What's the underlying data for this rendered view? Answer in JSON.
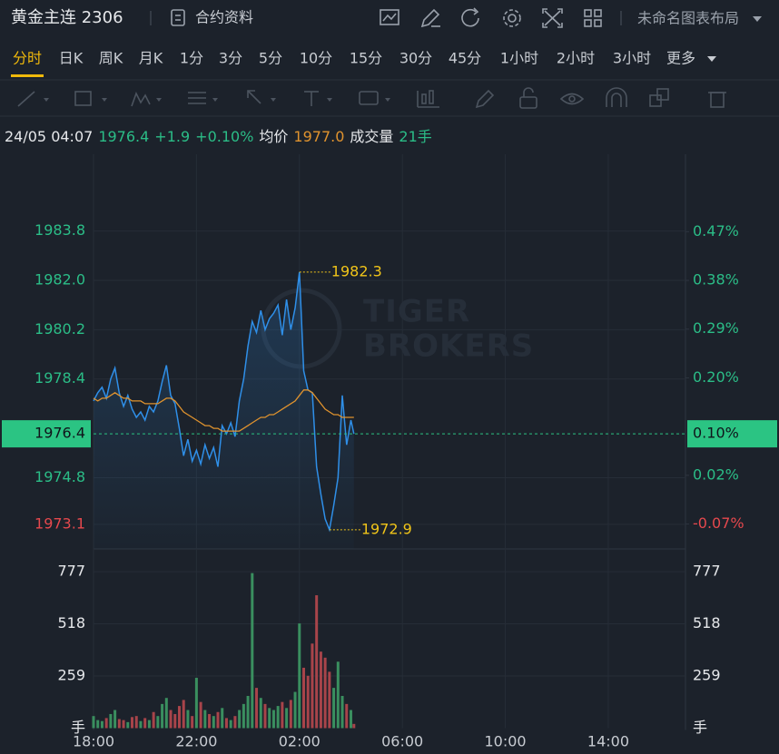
{
  "header": {
    "title": "黄金主连 2306",
    "contract": "合约资料",
    "layout": "未命名图表布局"
  },
  "tabs": [
    "分时",
    "日K",
    "周K",
    "月K",
    "1分",
    "3分",
    "5分",
    "10分",
    "15分",
    "30分",
    "45分",
    "1小时",
    "2小时",
    "3小时",
    "更多"
  ],
  "active_tab": 0,
  "info": {
    "time": "24/05 04:07",
    "price": "1976.4",
    "change": "+1.9",
    "change_pct": "+0.10%",
    "avg_label": "均价",
    "avg": "1977.0",
    "volume_label": "成交量",
    "volume": "21手"
  },
  "chart_data": [
    {
      "type": "line",
      "watermark": [
        "TIGER",
        "BROKERS"
      ],
      "x": [
        "18:00",
        "18:10",
        "18:20",
        "18:30",
        "18:40",
        "18:50",
        "19:00",
        "19:10",
        "19:20",
        "19:30",
        "19:40",
        "19:50",
        "20:00",
        "20:10",
        "20:20",
        "20:30",
        "20:40",
        "20:50",
        "21:00",
        "21:10",
        "21:20",
        "21:30",
        "21:40",
        "21:50",
        "22:00",
        "22:10",
        "22:20",
        "22:30",
        "22:40",
        "22:50",
        "23:00",
        "23:10",
        "23:20",
        "23:30",
        "23:40",
        "23:50",
        "00:00",
        "00:10",
        "00:20",
        "00:30",
        "00:40",
        "00:50",
        "01:00",
        "01:10",
        "01:20",
        "01:30",
        "01:40",
        "01:50",
        "02:00",
        "02:10",
        "02:20",
        "02:30",
        "02:40",
        "02:50",
        "03:00",
        "03:10",
        "03:20",
        "03:30",
        "03:40",
        "03:50",
        "04:00",
        "04:07"
      ],
      "series": [
        {
          "color": "#2f8fe8",
          "values": [
            1977.6,
            1977.9,
            1978.1,
            1977.7,
            1978.4,
            1978.8,
            1977.9,
            1977.4,
            1977.8,
            1977.3,
            1977.0,
            1977.2,
            1976.9,
            1977.4,
            1977.2,
            1977.6,
            1978.3,
            1978.9,
            1977.8,
            1977.5,
            1976.6,
            1975.6,
            1976.2,
            1975.4,
            1975.8,
            1975.3,
            1976.0,
            1975.5,
            1975.9,
            1975.2,
            1976.7,
            1976.4,
            1976.8,
            1976.3,
            1977.6,
            1978.4,
            1979.6,
            1980.5,
            1980.1,
            1980.9,
            1980.2,
            1980.6,
            1980.8,
            1981.1,
            1980.0,
            1981.3,
            1980.2,
            1981.0,
            1982.3,
            1978.7,
            1978.0,
            1977.9,
            1975.2,
            1974.2,
            1973.3,
            1972.9,
            1973.8,
            1974.8,
            1977.8,
            1976.0,
            1976.9,
            1976.4
          ]
        },
        {
          "color": "#e0932e",
          "values": [
            1977.7,
            1977.6,
            1977.7,
            1977.7,
            1977.8,
            1977.9,
            1977.8,
            1977.7,
            1977.7,
            1977.6,
            1977.6,
            1977.6,
            1977.5,
            1977.5,
            1977.5,
            1977.5,
            1977.6,
            1977.7,
            1977.7,
            1977.6,
            1977.4,
            1977.2,
            1977.1,
            1977.0,
            1976.9,
            1976.8,
            1976.7,
            1976.7,
            1976.6,
            1976.6,
            1976.5,
            1976.5,
            1976.5,
            1976.5,
            1976.5,
            1976.6,
            1976.7,
            1976.8,
            1976.9,
            1977.0,
            1977.0,
            1977.1,
            1977.1,
            1977.2,
            1977.3,
            1977.4,
            1977.5,
            1977.6,
            1977.8,
            1978.0,
            1978.0,
            1977.9,
            1977.7,
            1977.5,
            1977.3,
            1977.2,
            1977.1,
            1977.1,
            1977.0,
            1977.0,
            1977.0,
            1977.0
          ]
        }
      ],
      "xlim": [
        "18:00",
        "17:00"
      ],
      "xticks": [
        "18:00",
        "22:00",
        "02:00",
        "06:00",
        "10:00",
        "14:00"
      ],
      "ylim": [
        1972.2,
        1986.6
      ],
      "yticks": [
        1983.8,
        {
          "value": 1982,
          "label": "1982.0"
        },
        1980.2,
        1978.4,
        1974.8,
        1973.1
      ],
      "y2lim": [
        -0.116,
        0.613
      ],
      "y2ticks": [
        {
          "value": 0.47,
          "label": "0.47%"
        },
        {
          "value": 0.38,
          "label": "0.38%"
        },
        {
          "value": 0.29,
          "label": "0.29%"
        },
        {
          "value": 0.2,
          "label": "0.20%"
        },
        {
          "value": 0.02,
          "label": "0.02%"
        },
        {
          "value": -0.07,
          "label": "-0.07%"
        }
      ],
      "current_price": 1976.4,
      "current_change": {
        "value": 0.1,
        "label": "0.10%"
      },
      "annotations": [
        {
          "x": "02:00",
          "value": 1982.3
        },
        {
          "x": "03:10",
          "value": 1972.9
        }
      ],
      "annotation_color": "#f0c419",
      "up_color": "#2bbd87",
      "down_color": "#e5484d",
      "current_color": "#2bc483",
      "grid": true
    },
    {
      "type": "bar",
      "x": [
        "18:00",
        "18:10",
        "18:20",
        "18:30",
        "18:40",
        "18:50",
        "19:00",
        "19:10",
        "19:20",
        "19:30",
        "19:40",
        "19:50",
        "20:00",
        "20:10",
        "20:20",
        "20:30",
        "20:40",
        "20:50",
        "21:00",
        "21:10",
        "21:20",
        "21:30",
        "21:40",
        "21:50",
        "22:00",
        "22:10",
        "22:20",
        "22:30",
        "22:40",
        "22:50",
        "23:00",
        "23:10",
        "23:20",
        "23:30",
        "23:40",
        "23:50",
        "00:00",
        "00:10",
        "00:20",
        "00:30",
        "00:40",
        "00:50",
        "01:00",
        "01:10",
        "01:20",
        "01:30",
        "01:40",
        "01:50",
        "02:00",
        "02:10",
        "02:20",
        "02:30",
        "02:40",
        "02:50",
        "03:00",
        "03:10",
        "03:20",
        "03:30",
        "03:40",
        "03:50",
        "04:00",
        "04:07"
      ],
      "values": [
        60,
        40,
        35,
        50,
        70,
        90,
        45,
        40,
        30,
        55,
        60,
        35,
        50,
        40,
        80,
        60,
        120,
        150,
        90,
        70,
        110,
        140,
        90,
        60,
        250,
        130,
        90,
        70,
        60,
        80,
        100,
        50,
        40,
        60,
        90,
        120,
        160,
        770,
        200,
        150,
        120,
        100,
        90,
        110,
        130,
        100,
        140,
        180,
        520,
        300,
        260,
        420,
        660,
        380,
        350,
        280,
        200,
        330,
        160,
        120,
        90,
        21
      ],
      "xlim": [
        "18:00",
        "17:00"
      ],
      "xticks": [
        "18:00",
        "22:00",
        "02:00",
        "06:00",
        "10:00",
        "14:00"
      ],
      "ylim": [
        0,
        890
      ],
      "yticks": [
        {
          "value": 0,
          "label": "手"
        },
        259,
        518,
        777
      ],
      "up_color": "#3a8f5f",
      "down_color": "#a8444a",
      "grid": true
    }
  ]
}
